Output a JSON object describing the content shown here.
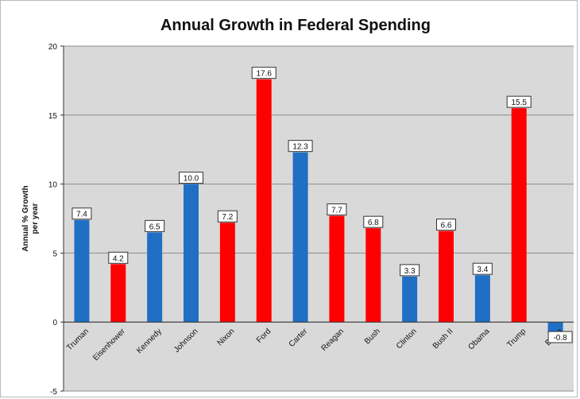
{
  "chart_data": {
    "type": "bar",
    "title": "Annual Growth in Federal Spending",
    "ylabel_line1": "Annual % Growth",
    "ylabel_line2": "per year",
    "xlabel": "",
    "ylim": [
      -5,
      20
    ],
    "yticks": [
      -5,
      0,
      5,
      10,
      15,
      20
    ],
    "grid": true,
    "legend": "none",
    "colors": {
      "blue": "#1f6fc4",
      "red": "#ff0000",
      "plot_bg": "#d9d9d9",
      "grid": "#8c8c8c"
    },
    "categories": [
      "Truman",
      "Eisenhower",
      "Kennedy",
      "Johnson",
      "Nixon",
      "Ford",
      "Carter",
      "Reagan",
      "Bush",
      "Clinton",
      "Bush II",
      "Obama",
      "Trump",
      "Biden"
    ],
    "values": [
      7.4,
      4.2,
      6.5,
      10.0,
      7.2,
      17.6,
      12.3,
      7.7,
      6.8,
      3.3,
      6.6,
      3.4,
      15.5,
      -0.8
    ],
    "data_labels": [
      "7.4",
      "4.2",
      "6.5",
      "10.0",
      "7.2",
      "17.6",
      "12.3",
      "7.7",
      "6.8",
      "3.3",
      "6.6",
      "3.4",
      "15.5",
      "-0.8"
    ],
    "bar_colors": [
      "blue",
      "red",
      "blue",
      "blue",
      "red",
      "red",
      "blue",
      "red",
      "red",
      "blue",
      "red",
      "blue",
      "red",
      "blue"
    ]
  }
}
